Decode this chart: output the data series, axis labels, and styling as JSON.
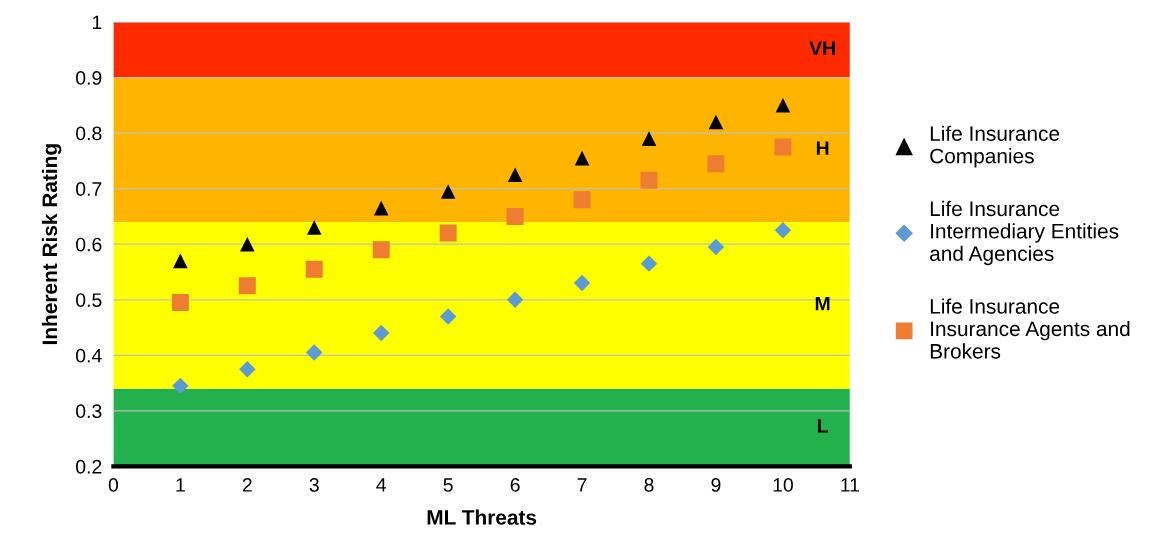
{
  "chart_data": {
    "type": "scatter",
    "xlabel": "ML Threats",
    "ylabel": "Inherent Risk Rating",
    "x": [
      1,
      2,
      3,
      4,
      5,
      6,
      7,
      8,
      9,
      10
    ],
    "series": [
      {
        "name": "Life Insurance\nCompanies",
        "color": "#000000",
        "marker": "triangle",
        "values": [
          0.57,
          0.6,
          0.63,
          0.665,
          0.695,
          0.725,
          0.755,
          0.79,
          0.82,
          0.85
        ]
      },
      {
        "name": "Life Insurance\nIntermediary Entities\nand Agencies",
        "color": "#5b9bd5",
        "marker": "diamond",
        "values": [
          0.345,
          0.375,
          0.405,
          0.44,
          0.47,
          0.5,
          0.53,
          0.565,
          0.595,
          0.625
        ]
      },
      {
        "name": "Life Insurance\nInsurance Agents and\nBrokers",
        "color": "#ed7d31",
        "marker": "square",
        "values": [
          0.495,
          0.525,
          0.555,
          0.59,
          0.62,
          0.65,
          0.68,
          0.715,
          0.745,
          0.775
        ]
      }
    ],
    "xlim": [
      0,
      11
    ],
    "xticks": [
      0,
      1,
      2,
      3,
      4,
      5,
      6,
      7,
      8,
      9,
      10,
      11
    ],
    "ylim": [
      0.2,
      1
    ],
    "yticks": [
      0.2,
      0.3,
      0.4,
      0.5,
      0.6,
      0.7,
      0.8,
      0.9,
      1
    ],
    "bands": [
      {
        "axis": "y",
        "from": 0.2,
        "to": 0.34,
        "color": "#22b14c",
        "label": "L"
      },
      {
        "axis": "y",
        "from": 0.34,
        "to": 0.64,
        "color": "#ffff00",
        "label": "M"
      },
      {
        "axis": "y",
        "from": 0.64,
        "to": 0.9,
        "color": "#ffb400",
        "label": "H"
      },
      {
        "axis": "y",
        "from": 0.9,
        "to": 1,
        "color": "#ff2a00",
        "label": "VH"
      }
    ],
    "grid": "y",
    "legend": "right"
  }
}
